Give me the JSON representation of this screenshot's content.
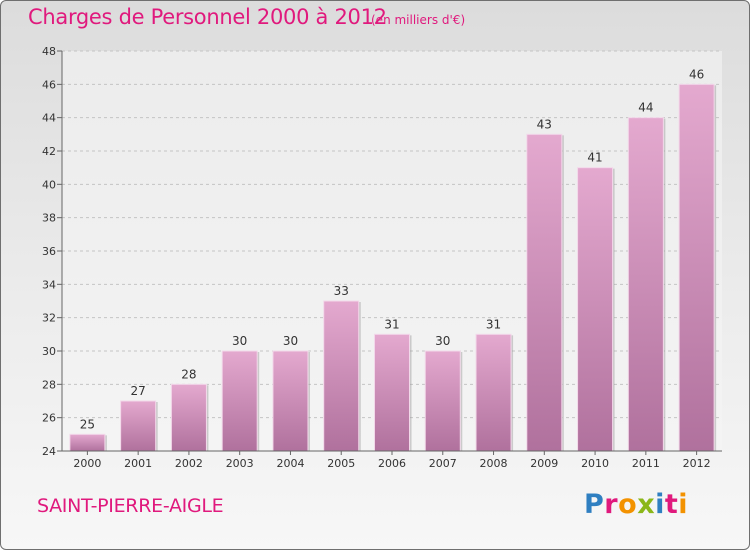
{
  "header": {
    "title": "Charges de Personnel 2000 à 2012",
    "unit": "(en milliers d'€)"
  },
  "footer": {
    "commune": "SAINT-PIERRE-AIGLE",
    "logo_letters": [
      {
        "ch": "P",
        "color": "#2f7fc1"
      },
      {
        "ch": "r",
        "color": "#e0197d"
      },
      {
        "ch": "o",
        "color": "#f39200"
      },
      {
        "ch": "x",
        "color": "#8bb719"
      },
      {
        "ch": "i",
        "color": "#2f7fc1"
      },
      {
        "ch": "t",
        "color": "#e0197d"
      },
      {
        "ch": "i",
        "color": "#f39200"
      }
    ]
  },
  "colors": {
    "bar_top": "#e4a9cf",
    "bar_bottom": "#b0719d",
    "accent": "#e0197d"
  },
  "chart_data": {
    "type": "bar",
    "categories": [
      "2000",
      "2001",
      "2002",
      "2003",
      "2004",
      "2005",
      "2006",
      "2007",
      "2008",
      "2009",
      "2010",
      "2011",
      "2012"
    ],
    "values": [
      25,
      27,
      28,
      30,
      30,
      33,
      31,
      30,
      31,
      43,
      41,
      44,
      46
    ],
    "ylim": [
      24,
      48
    ],
    "yticks": [
      24,
      26,
      28,
      30,
      32,
      34,
      36,
      38,
      40,
      42,
      44,
      46,
      48
    ],
    "grid": "horizontal dashed"
  }
}
